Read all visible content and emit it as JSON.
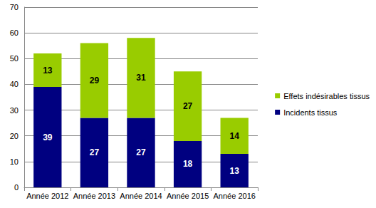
{
  "chart_data": {
    "type": "bar",
    "stacked": true,
    "data_labels": true,
    "grid": true,
    "legend": "right",
    "categories": [
      "Année 2012",
      "Année 2013",
      "Année 2014",
      "Année 2015",
      "Année 2016"
    ],
    "series": [
      {
        "name": "Incidents tissus",
        "color": "#000080",
        "values": [
          39,
          27,
          27,
          18,
          13
        ]
      },
      {
        "name": "Effets indésirables tissus",
        "color": "#99cc00",
        "values": [
          13,
          29,
          31,
          27,
          14
        ]
      }
    ],
    "ylim": [
      0,
      70
    ],
    "yticks": [
      0,
      10,
      20,
      30,
      40,
      50,
      60,
      70
    ]
  }
}
